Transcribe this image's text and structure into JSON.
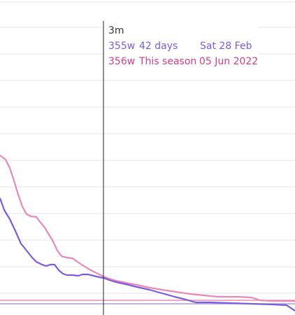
{
  "tooltip": {
    "header": "3m",
    "rows": [
      {
        "value": "355w",
        "label": "42 days",
        "date": "Sat 28 Feb",
        "color": "#7b5ce0"
      },
      {
        "value": "356w",
        "label": "This season",
        "date": "05 Jun 2022",
        "color": "#d63f86"
      }
    ]
  },
  "colors": {
    "series_a": "#7b5ce0",
    "series_b": "#e889b7",
    "baseline_a": "#a79be8",
    "baseline_b": "#eb8cb8",
    "grid": "#e6e6e6",
    "crosshair": "#222222"
  },
  "chart_data": {
    "type": "line",
    "grid": true,
    "series": [
      {
        "name": "42 days",
        "color": "#7b5ce0",
        "points": [
          [
            0,
            0.72
          ],
          [
            0.5,
            0.66
          ],
          [
            1,
            0.6
          ],
          [
            1.5,
            0.55
          ],
          [
            2,
            0.5
          ],
          [
            3,
            0.45
          ],
          [
            4,
            0.41
          ],
          [
            5,
            0.38
          ],
          [
            6,
            0.37
          ],
          [
            7,
            0.36
          ],
          [
            8,
            0.35
          ],
          [
            9,
            0.35
          ],
          [
            10,
            0.35
          ],
          [
            11,
            0.34
          ],
          [
            12,
            0.34
          ],
          [
            13,
            0.33
          ],
          [
            14,
            0.33
          ],
          [
            15,
            0.32
          ],
          [
            16,
            0.32
          ],
          [
            17,
            0.31
          ],
          [
            18,
            0.3
          ],
          [
            20,
            0.29
          ],
          [
            22,
            0.29
          ],
          [
            24,
            0.28
          ],
          [
            26,
            0.28
          ],
          [
            28,
            0.28
          ],
          [
            30,
            0.27
          ]
        ]
      },
      {
        "name": "This season",
        "color": "#e889b7",
        "points": [
          [
            0,
            0.8
          ],
          [
            0.5,
            0.77
          ],
          [
            1,
            0.73
          ],
          [
            1.5,
            0.7
          ],
          [
            2,
            0.66
          ],
          [
            3,
            0.6
          ],
          [
            4,
            0.55
          ],
          [
            5,
            0.5
          ],
          [
            6,
            0.46
          ],
          [
            7,
            0.43
          ],
          [
            8,
            0.4
          ],
          [
            9,
            0.37
          ],
          [
            10,
            0.35
          ],
          [
            11,
            0.34
          ],
          [
            12,
            0.33
          ],
          [
            13,
            0.33
          ],
          [
            14,
            0.32
          ],
          [
            15,
            0.32
          ],
          [
            16,
            0.31
          ],
          [
            17,
            0.31
          ],
          [
            18,
            0.3
          ],
          [
            20,
            0.3
          ],
          [
            22,
            0.3
          ],
          [
            24,
            0.29
          ],
          [
            26,
            0.29
          ],
          [
            28,
            0.28
          ],
          [
            30,
            0.28
          ]
        ]
      }
    ],
    "baselines": [
      {
        "series": "42 days",
        "value": 0.3
      },
      {
        "series": "This season",
        "value": 0.31
      }
    ],
    "crosshair_x": 10,
    "xlim": [
      0,
      30
    ],
    "ylim": [
      0.26,
      1.0
    ]
  }
}
